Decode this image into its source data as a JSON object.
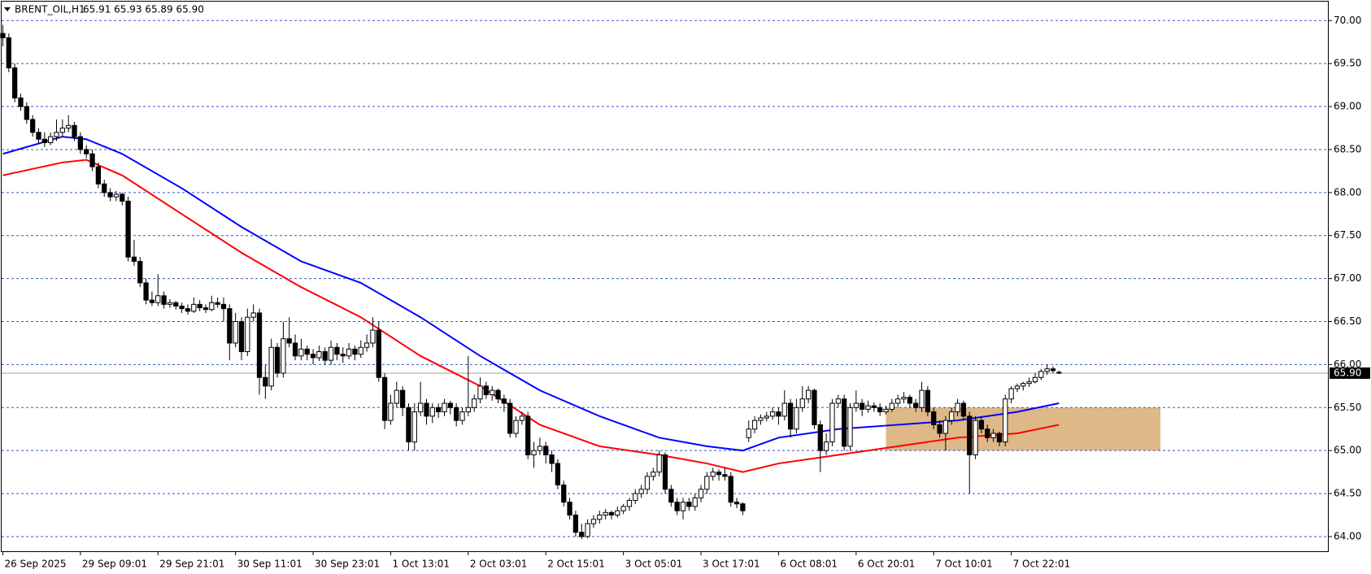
{
  "chart_data": {
    "type": "candlestick",
    "title": "BRENT_OIL,H1",
    "ohlc_label": "65.91 65.93 65.89 65.90",
    "candles": [
      [
        69.85,
        69.95,
        69.7,
        69.8
      ],
      [
        69.8,
        69.85,
        69.4,
        69.45
      ],
      [
        69.45,
        69.5,
        69.05,
        69.1
      ],
      [
        69.1,
        69.15,
        68.95,
        69.0
      ],
      [
        69.0,
        69.05,
        68.8,
        68.85
      ],
      [
        68.85,
        68.9,
        68.65,
        68.7
      ],
      [
        68.7,
        68.75,
        68.57,
        68.62
      ],
      [
        68.62,
        68.7,
        68.53,
        68.58
      ],
      [
        68.58,
        68.7,
        68.55,
        68.65
      ],
      [
        68.65,
        68.85,
        68.6,
        68.7
      ],
      [
        68.7,
        68.85,
        68.65,
        68.75
      ],
      [
        68.75,
        68.9,
        68.7,
        68.78
      ],
      [
        68.78,
        68.82,
        68.6,
        68.65
      ],
      [
        68.65,
        68.7,
        68.45,
        68.5
      ],
      [
        68.5,
        68.55,
        68.4,
        68.45
      ],
      [
        68.45,
        68.5,
        68.25,
        68.3
      ],
      [
        68.3,
        68.35,
        68.05,
        68.1
      ],
      [
        68.1,
        68.15,
        67.95,
        68.0
      ],
      [
        68.0,
        68.05,
        67.9,
        67.95
      ],
      [
        67.95,
        68.02,
        67.9,
        67.98
      ],
      [
        67.98,
        68.0,
        67.85,
        67.9
      ],
      [
        67.9,
        67.95,
        67.2,
        67.25
      ],
      [
        67.25,
        67.45,
        67.15,
        67.2
      ],
      [
        67.2,
        67.25,
        66.9,
        66.95
      ],
      [
        66.95,
        67.0,
        66.7,
        66.75
      ],
      [
        66.75,
        66.85,
        66.68,
        66.72
      ],
      [
        66.72,
        67.05,
        66.68,
        66.8
      ],
      [
        66.8,
        66.85,
        66.65,
        66.7
      ],
      [
        66.7,
        66.76,
        66.66,
        66.72
      ],
      [
        66.72,
        66.74,
        66.64,
        66.68
      ],
      [
        66.68,
        66.72,
        66.6,
        66.65
      ],
      [
        66.65,
        66.7,
        66.58,
        66.62
      ],
      [
        66.62,
        66.78,
        66.6,
        66.7
      ],
      [
        66.7,
        66.75,
        66.62,
        66.66
      ],
      [
        66.66,
        66.7,
        66.6,
        66.64
      ],
      [
        66.64,
        66.8,
        66.62,
        66.72
      ],
      [
        66.72,
        66.78,
        66.66,
        66.7
      ],
      [
        66.7,
        66.78,
        66.5,
        66.65
      ],
      [
        66.65,
        66.7,
        66.05,
        66.25
      ],
      [
        66.25,
        66.6,
        66.2,
        66.5
      ],
      [
        66.5,
        66.55,
        66.05,
        66.15
      ],
      [
        66.15,
        66.65,
        66.1,
        66.55
      ],
      [
        66.55,
        66.7,
        66.5,
        66.6
      ],
      [
        66.6,
        66.65,
        65.65,
        65.85
      ],
      [
        65.85,
        66.0,
        65.6,
        65.75
      ],
      [
        65.75,
        66.3,
        65.7,
        66.2
      ],
      [
        66.2,
        66.25,
        65.85,
        65.9
      ],
      [
        65.9,
        66.5,
        65.85,
        66.3
      ],
      [
        66.3,
        66.55,
        66.2,
        66.25
      ],
      [
        66.25,
        66.35,
        66.05,
        66.1
      ],
      [
        66.1,
        66.3,
        66.05,
        66.18
      ],
      [
        66.18,
        66.22,
        66.05,
        66.12
      ],
      [
        66.12,
        66.18,
        66.0,
        66.08
      ],
      [
        66.08,
        66.22,
        66.04,
        66.15
      ],
      [
        66.15,
        66.2,
        66.0,
        66.05
      ],
      [
        66.05,
        66.28,
        66.0,
        66.2
      ],
      [
        66.2,
        66.25,
        66.05,
        66.12
      ],
      [
        66.12,
        66.2,
        66.02,
        66.1
      ],
      [
        66.1,
        66.25,
        66.06,
        66.18
      ],
      [
        66.18,
        66.22,
        66.05,
        66.12
      ],
      [
        66.12,
        66.28,
        66.08,
        66.2
      ],
      [
        66.2,
        66.35,
        66.15,
        66.25
      ],
      [
        66.25,
        66.55,
        66.2,
        66.4
      ],
      [
        66.4,
        66.5,
        65.8,
        65.85
      ],
      [
        65.85,
        65.9,
        65.25,
        65.35
      ],
      [
        65.35,
        65.65,
        65.3,
        65.55
      ],
      [
        65.55,
        65.8,
        65.5,
        65.7
      ],
      [
        65.7,
        65.75,
        65.4,
        65.5
      ],
      [
        65.5,
        65.55,
        65.0,
        65.1
      ],
      [
        65.1,
        65.55,
        65.0,
        65.45
      ],
      [
        65.45,
        65.8,
        65.4,
        65.55
      ],
      [
        65.55,
        65.6,
        65.3,
        65.4
      ],
      [
        65.4,
        65.55,
        65.32,
        65.5
      ],
      [
        65.5,
        65.55,
        65.38,
        65.45
      ],
      [
        65.45,
        65.6,
        65.4,
        65.55
      ],
      [
        65.55,
        65.58,
        65.42,
        65.5
      ],
      [
        65.5,
        65.55,
        65.28,
        65.35
      ],
      [
        65.35,
        65.5,
        65.3,
        65.45
      ],
      [
        65.45,
        66.1,
        65.4,
        65.5
      ],
      [
        65.5,
        65.65,
        65.45,
        65.6
      ],
      [
        65.6,
        65.85,
        65.55,
        65.75
      ],
      [
        65.75,
        65.8,
        65.6,
        65.65
      ],
      [
        65.65,
        65.75,
        65.58,
        65.7
      ],
      [
        65.7,
        65.72,
        65.55,
        65.6
      ],
      [
        65.6,
        65.65,
        65.45,
        65.55
      ],
      [
        65.55,
        65.6,
        65.15,
        65.2
      ],
      [
        65.2,
        65.4,
        65.15,
        65.35
      ],
      [
        65.35,
        65.45,
        65.3,
        65.4
      ],
      [
        65.4,
        65.45,
        64.9,
        64.95
      ],
      [
        64.95,
        65.1,
        64.8,
        65.0
      ],
      [
        65.0,
        65.15,
        64.95,
        65.05
      ],
      [
        65.05,
        65.1,
        64.85,
        64.95
      ],
      [
        64.95,
        65.0,
        64.75,
        64.85
      ],
      [
        64.85,
        64.9,
        64.55,
        64.6
      ],
      [
        64.6,
        64.65,
        64.35,
        64.4
      ],
      [
        64.4,
        64.45,
        64.2,
        64.25
      ],
      [
        64.25,
        64.3,
        64.0,
        64.05
      ],
      [
        64.05,
        64.15,
        63.97,
        64.0
      ],
      [
        64.0,
        64.2,
        63.98,
        64.15
      ],
      [
        64.15,
        64.25,
        64.1,
        64.2
      ],
      [
        64.2,
        64.3,
        64.15,
        64.25
      ],
      [
        64.25,
        64.32,
        64.2,
        64.28
      ],
      [
        64.28,
        64.3,
        64.2,
        64.25
      ],
      [
        64.25,
        64.35,
        64.22,
        64.3
      ],
      [
        64.3,
        64.38,
        64.26,
        64.35
      ],
      [
        64.35,
        64.45,
        64.3,
        64.42
      ],
      [
        64.42,
        64.55,
        64.38,
        64.5
      ],
      [
        64.5,
        64.6,
        64.45,
        64.55
      ],
      [
        64.55,
        64.75,
        64.5,
        64.7
      ],
      [
        64.7,
        64.8,
        64.65,
        64.75
      ],
      [
        64.75,
        65.0,
        64.7,
        64.95
      ],
      [
        64.95,
        64.98,
        64.5,
        64.55
      ],
      [
        64.55,
        64.6,
        64.35,
        64.4
      ],
      [
        64.4,
        64.45,
        64.25,
        64.3
      ],
      [
        64.3,
        64.45,
        64.2,
        64.4
      ],
      [
        64.4,
        64.45,
        64.3,
        64.35
      ],
      [
        64.35,
        64.5,
        64.3,
        64.45
      ],
      [
        64.45,
        64.6,
        64.4,
        64.55
      ],
      [
        64.55,
        64.75,
        64.5,
        64.7
      ],
      [
        64.7,
        64.8,
        64.65,
        64.75
      ],
      [
        64.75,
        64.78,
        64.65,
        64.72
      ],
      [
        64.72,
        64.8,
        64.65,
        64.7
      ],
      [
        64.7,
        64.75,
        64.35,
        64.4
      ],
      [
        64.4,
        64.45,
        64.33,
        64.38
      ],
      [
        64.38,
        64.4,
        64.25,
        64.3
      ],
      [
        65.15,
        65.35,
        65.1,
        65.25
      ],
      [
        65.25,
        65.4,
        65.2,
        65.35
      ],
      [
        65.35,
        65.42,
        65.3,
        65.38
      ],
      [
        65.38,
        65.45,
        65.34,
        65.4
      ],
      [
        65.4,
        65.5,
        65.36,
        65.45
      ],
      [
        65.45,
        65.5,
        65.3,
        65.4
      ],
      [
        65.4,
        65.7,
        65.35,
        65.55
      ],
      [
        65.55,
        65.6,
        65.15,
        65.25
      ],
      [
        65.25,
        65.6,
        65.2,
        65.5
      ],
      [
        65.5,
        65.75,
        65.45,
        65.6
      ],
      [
        65.6,
        65.75,
        65.55,
        65.7
      ],
      [
        65.7,
        65.72,
        65.25,
        65.3
      ],
      [
        65.3,
        65.35,
        64.75,
        65.0
      ],
      [
        65.0,
        65.2,
        64.95,
        65.1
      ],
      [
        65.1,
        65.6,
        65.05,
        65.55
      ],
      [
        65.55,
        65.65,
        65.5,
        65.6
      ],
      [
        65.6,
        65.65,
        65.0,
        65.05
      ],
      [
        65.05,
        65.55,
        65.0,
        65.5
      ],
      [
        65.5,
        65.7,
        65.45,
        65.55
      ],
      [
        65.55,
        65.6,
        65.4,
        65.48
      ],
      [
        65.48,
        65.58,
        65.44,
        65.52
      ],
      [
        65.52,
        65.56,
        65.45,
        65.5
      ],
      [
        65.5,
        65.55,
        65.4,
        65.45
      ],
      [
        65.45,
        65.52,
        65.42,
        65.48
      ],
      [
        65.48,
        65.6,
        65.45,
        65.55
      ],
      [
        65.55,
        65.65,
        65.5,
        65.6
      ],
      [
        65.6,
        65.68,
        65.55,
        65.62
      ],
      [
        65.62,
        65.65,
        65.5,
        65.55
      ],
      [
        65.55,
        65.6,
        65.45,
        65.5
      ],
      [
        65.5,
        65.8,
        65.45,
        65.7
      ],
      [
        65.7,
        65.75,
        65.4,
        65.45
      ],
      [
        65.45,
        65.5,
        65.25,
        65.3
      ],
      [
        65.3,
        65.35,
        65.15,
        65.2
      ],
      [
        65.2,
        65.4,
        65.0,
        65.35
      ],
      [
        65.35,
        65.5,
        65.3,
        65.45
      ],
      [
        65.45,
        65.6,
        65.4,
        65.55
      ],
      [
        65.55,
        65.58,
        65.35,
        65.4
      ],
      [
        65.4,
        65.45,
        64.5,
        64.95
      ],
      [
        64.95,
        65.4,
        64.9,
        65.35
      ],
      [
        65.35,
        65.4,
        65.2,
        65.25
      ],
      [
        65.25,
        65.3,
        65.1,
        65.15
      ],
      [
        65.15,
        65.25,
        65.1,
        65.2
      ],
      [
        65.2,
        65.22,
        65.05,
        65.1
      ],
      [
        65.1,
        65.65,
        65.05,
        65.6
      ],
      [
        65.6,
        65.75,
        65.55,
        65.72
      ],
      [
        65.72,
        65.78,
        65.68,
        65.75
      ],
      [
        65.75,
        65.8,
        65.7,
        65.78
      ],
      [
        65.78,
        65.85,
        65.74,
        65.8
      ],
      [
        65.8,
        65.9,
        65.78,
        65.85
      ],
      [
        65.85,
        65.95,
        65.82,
        65.92
      ],
      [
        65.92,
        66.0,
        65.88,
        65.95
      ],
      [
        65.95,
        65.98,
        65.9,
        65.93
      ],
      [
        65.91,
        65.93,
        65.89,
        65.9
      ]
    ],
    "categories": [
      "26 Sep 2025",
      null,
      null,
      null,
      null,
      null,
      null,
      null,
      null,
      null,
      null,
      null,
      null,
      "29 Sep 09:01",
      null,
      null,
      null,
      null,
      null,
      null,
      null,
      null,
      null,
      null,
      null,
      null,
      "29 Sep 21:01",
      null,
      null,
      null,
      null,
      null,
      null,
      null,
      null,
      null,
      null,
      null,
      null,
      "30 Sep 11:01",
      null,
      null,
      null,
      null,
      null,
      null,
      null,
      null,
      null,
      null,
      null,
      null,
      "30 Sep 23:01",
      null,
      null,
      null,
      null,
      null,
      null,
      null,
      null,
      null,
      null,
      null,
      null,
      "1 Oct 13:01",
      null,
      null,
      null,
      null,
      null,
      null,
      null,
      null,
      null,
      null,
      null,
      null,
      "2 Oct 03:01",
      null,
      null,
      null,
      null,
      null,
      null,
      null,
      null,
      null,
      null,
      null,
      null,
      "2 Oct 15:01",
      null,
      null,
      null,
      null,
      null,
      null,
      null,
      null,
      null,
      null,
      null,
      null,
      "3 Oct 05:01",
      null,
      null,
      null,
      null,
      null,
      null,
      null,
      null,
      null,
      null,
      null,
      null,
      "3 Oct 17:01",
      null,
      null,
      null,
      null,
      null,
      null,
      null,
      null,
      null,
      null,
      null,
      null,
      "6 Oct 08:01",
      null,
      null,
      null,
      null,
      null,
      null,
      null,
      null,
      null,
      null,
      null,
      null,
      "6 Oct 20:01",
      null,
      null,
      null,
      null,
      null,
      null,
      null,
      null,
      null,
      null,
      null,
      null,
      "7 Oct 10:01",
      null,
      null,
      null,
      null,
      null,
      null,
      null,
      null,
      null,
      null,
      null,
      null,
      "7 Oct 22:01",
      null,
      null,
      null,
      null,
      null,
      null,
      null,
      null
    ],
    "series": [
      {
        "color": "#0000ff",
        "x": [
          0,
          10,
          14,
          20,
          30,
          40,
          50,
          60,
          70,
          80,
          90,
          100,
          110,
          118,
          124,
          130,
          140,
          150,
          160,
          170,
          177
        ],
        "values": [
          68.45,
          68.65,
          68.62,
          68.45,
          68.05,
          67.6,
          67.2,
          66.95,
          66.55,
          66.1,
          65.7,
          65.4,
          65.15,
          65.05,
          65.0,
          65.15,
          65.25,
          65.3,
          65.35,
          65.45,
          65.55
        ]
      },
      {
        "color": "#ff0000",
        "x": [
          0,
          10,
          14,
          20,
          30,
          40,
          50,
          60,
          70,
          80,
          90,
          100,
          110,
          118,
          124,
          130,
          140,
          150,
          160,
          170,
          177
        ],
        "values": [
          68.2,
          68.35,
          68.38,
          68.2,
          67.75,
          67.3,
          66.9,
          66.55,
          66.1,
          65.75,
          65.3,
          65.05,
          64.95,
          64.85,
          64.75,
          64.85,
          64.95,
          65.05,
          65.15,
          65.2,
          65.3
        ]
      }
    ],
    "zone": {
      "x": [
        148,
        194
      ],
      "y": [
        65.0,
        65.5
      ],
      "color": "#deb887"
    },
    "last_price": {
      "value": 65.9,
      "label": "65.90"
    },
    "xlim": [
      -0.2,
      222.2
    ],
    "ylim": [
      63.82,
      70.22
    ],
    "yticks": [
      {
        "value": 64,
        "label": "64.00"
      },
      {
        "value": 64.5,
        "label": "64.50"
      },
      {
        "value": 65,
        "label": "65.00"
      },
      {
        "value": 65.5,
        "label": "65.50"
      },
      {
        "value": 66,
        "label": "66.00"
      },
      {
        "value": 66.5,
        "label": "66.50"
      },
      {
        "value": 67,
        "label": "67.00"
      },
      {
        "value": 67.5,
        "label": "67.50"
      },
      {
        "value": 68,
        "label": "68.00"
      },
      {
        "value": 68.5,
        "label": "68.50"
      },
      {
        "value": 69,
        "label": "69.00"
      },
      {
        "value": 69.5,
        "label": "69.50"
      },
      {
        "value": 70,
        "label": "70.00"
      }
    ],
    "grid": true,
    "grid_color": "#3355cc",
    "up_color": "#ffffff",
    "down_color": "#000000"
  }
}
